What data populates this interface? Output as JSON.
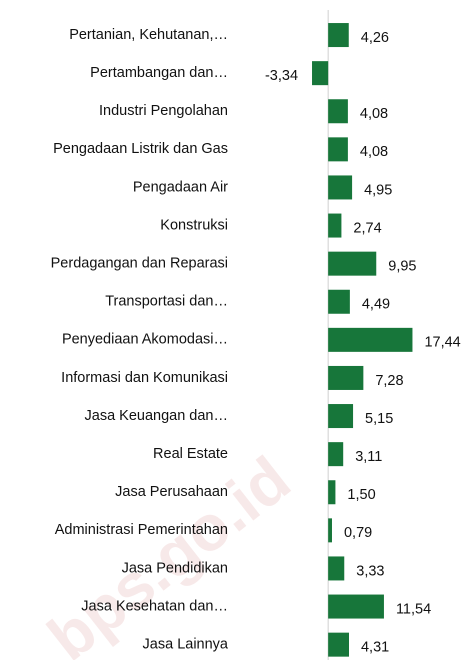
{
  "chart_data": {
    "type": "barh",
    "categories": [
      "Pertanian, Kehutanan,…",
      "Pertambangan dan…",
      "Industri Pengolahan",
      "Pengadaan Listrik dan Gas",
      "Pengadaan Air",
      "Konstruksi",
      "Perdagangan dan Reparasi",
      "Transportasi dan…",
      "Penyediaan Akomodasi…",
      "Informasi dan Komunikasi",
      "Jasa Keuangan dan…",
      "Real Estate",
      "Jasa Perusahaan",
      "Administrasi Pemerintahan",
      "Jasa Pendidikan",
      "Jasa Kesehatan dan…",
      "Jasa Lainnya"
    ],
    "values": [
      4.26,
      -3.34,
      4.08,
      4.08,
      4.95,
      2.74,
      9.95,
      4.49,
      17.44,
      7.28,
      5.15,
      3.11,
      1.5,
      0.79,
      3.33,
      11.54,
      4.31
    ],
    "value_labels": [
      "4,26",
      "-3,34",
      "4,08",
      "4,08",
      "4,95",
      "2,74",
      "9,95",
      "4,49",
      "17,44",
      "7,28",
      "5,15",
      "3,11",
      "1,50",
      "0,79",
      "3,33",
      "11,54",
      "4,31"
    ],
    "color": "#17763a",
    "xlim": [
      -5,
      25
    ],
    "watermark": "bps.go.id"
  }
}
